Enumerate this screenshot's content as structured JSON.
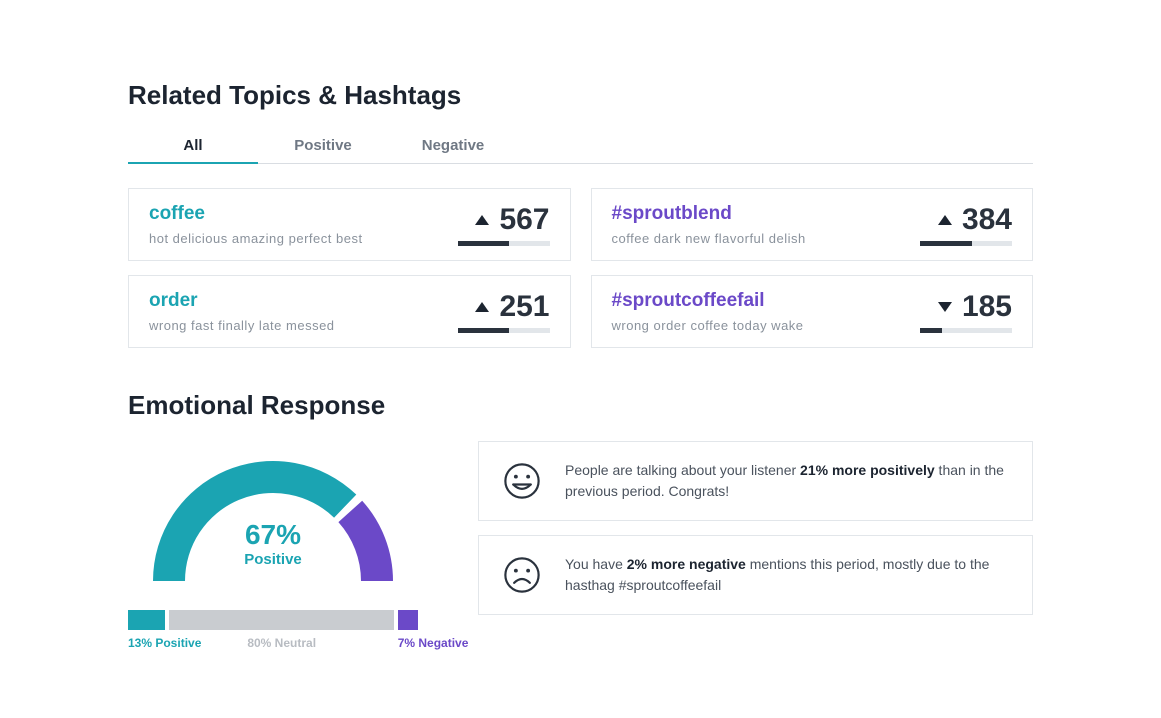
{
  "colors": {
    "teal": "#1ba4b2",
    "purple": "#6b49c8",
    "grey": "#c9ccd0",
    "dark": "#2a323d",
    "border": "#e2e6ea",
    "text_muted": "#8a929c"
  },
  "related": {
    "title": "Related Topics & Hashtags",
    "tabs": [
      {
        "label": "All",
        "active": true
      },
      {
        "label": "Positive",
        "active": false
      },
      {
        "label": "Negative",
        "active": false
      }
    ],
    "cards": [
      {
        "title": "coffee",
        "type": "keyword",
        "terms": "hot  delicious  amazing  perfect  best",
        "count": "567",
        "trend": "up",
        "bar_pct": 56
      },
      {
        "title": "#sproutblend",
        "type": "hashtag",
        "terms": "coffee  dark  new  flavorful  delish",
        "count": "384",
        "trend": "up",
        "bar_pct": 56
      },
      {
        "title": "order",
        "type": "keyword",
        "terms": "wrong  fast  finally  late  messed",
        "count": "251",
        "trend": "up",
        "bar_pct": 56
      },
      {
        "title": "#sproutcoffeefail",
        "type": "hashtag",
        "terms": "wrong  order  coffee  today  wake",
        "count": "185",
        "trend": "down",
        "bar_pct": 24
      }
    ]
  },
  "emotional": {
    "title": "Emotional Response",
    "gauge": {
      "percent_label": "67%",
      "sublabel": "Positive",
      "positive_deg": 134,
      "colors": {
        "positive": "#1ba4b2",
        "negative": "#6b49c8",
        "track": "#ffffff"
      }
    },
    "distribution": {
      "positive": {
        "pct": 13,
        "label": "13% Positive",
        "color": "#1ba4b2"
      },
      "neutral": {
        "pct": 80,
        "label": "80% Neutral",
        "color": "#c9ccd0"
      },
      "negative": {
        "pct": 7,
        "label": "7% Negative",
        "color": "#6b49c8"
      }
    },
    "insights": [
      {
        "mood": "happy",
        "text_pre": "People are talking about your listener ",
        "bold": "21% more positively",
        "text_post": " than in the previous period. Congrats!"
      },
      {
        "mood": "sad",
        "text_pre": "You have ",
        "bold": "2% more negative",
        "text_post": " mentions this period, mostly due to the hasthag #sproutcoffeefail"
      }
    ]
  }
}
